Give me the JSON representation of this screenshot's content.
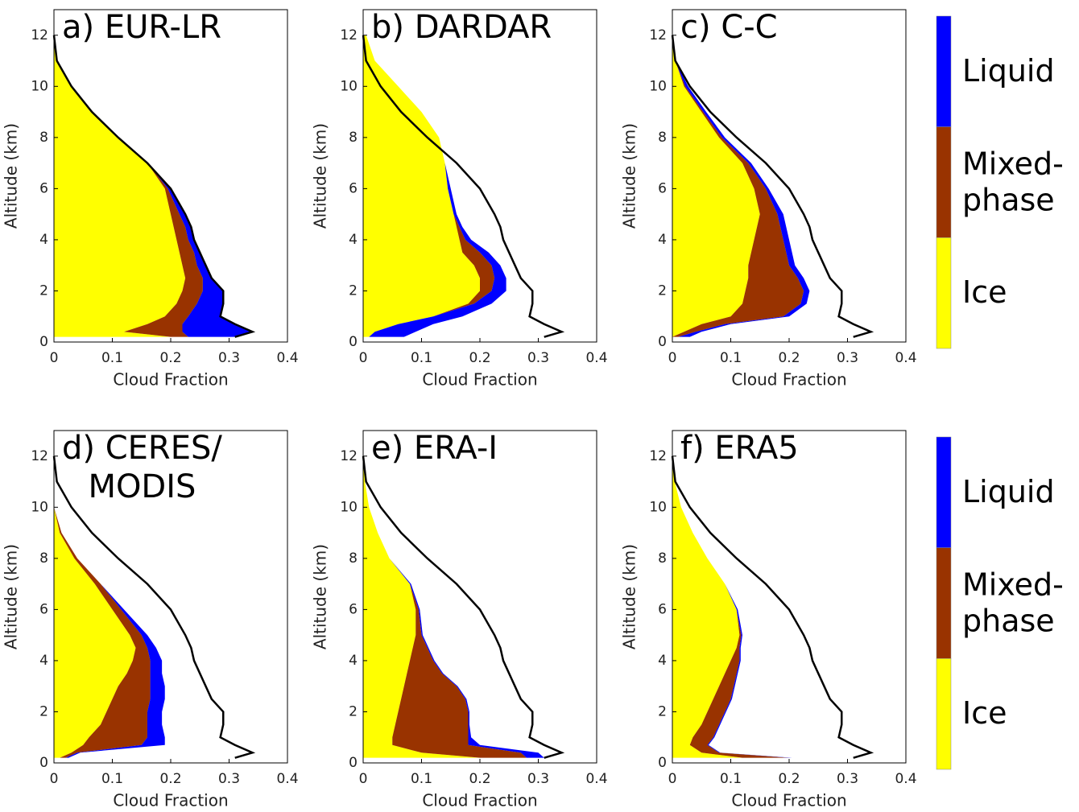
{
  "chart_data": [
    {
      "type": "area",
      "title": "a) EUR-LR",
      "xlabel": "Cloud Fraction",
      "ylabel": "Altitude (km)",
      "xlim": [
        0,
        0.4
      ],
      "ylim": [
        0,
        13
      ],
      "xticks": [
        0,
        0.1,
        0.2,
        0.3,
        0.4
      ],
      "yticks": [
        0,
        2,
        4,
        6,
        8,
        10,
        12
      ],
      "y": [
        0.2,
        0.4,
        0.7,
        1,
        1.5,
        2,
        2.5,
        3,
        3.5,
        4,
        4.5,
        5,
        6,
        7,
        8,
        9,
        10,
        11,
        12
      ],
      "series": [
        {
          "type": "area",
          "color": "#ffff00",
          "values": [
            0.2,
            0.12,
            0.16,
            0.19,
            0.21,
            0.22,
            0.225,
            0.22,
            0.215,
            0.21,
            0.205,
            0.2,
            0.19,
            0.16,
            0.11,
            0.065,
            0.03,
            0.005,
            0
          ]
        },
        {
          "type": "area",
          "color": "#993300",
          "values": [
            0.03,
            0.1,
            0.06,
            0.04,
            0.035,
            0.035,
            0.03,
            0.025,
            0.025,
            0.02,
            0.02,
            0.015,
            0.005,
            0,
            0,
            0,
            0,
            0,
            0
          ]
        },
        {
          "type": "area",
          "color": "#0000ff",
          "values": [
            0.08,
            0.12,
            0.09,
            0.055,
            0.045,
            0.035,
            0.015,
            0.015,
            0.01,
            0.01,
            0.01,
            0.01,
            0.005,
            0,
            0,
            0,
            0,
            0,
            0
          ]
        },
        {
          "type": "line",
          "color": "#000000",
          "values": [
            0.31,
            0.34,
            0.31,
            0.285,
            0.29,
            0.29,
            0.27,
            0.26,
            0.25,
            0.24,
            0.235,
            0.225,
            0.2,
            0.16,
            0.11,
            0.065,
            0.03,
            0.005,
            0
          ]
        }
      ]
    },
    {
      "type": "area",
      "title": "b) DARDAR",
      "xlabel": "Cloud Fraction",
      "ylabel": "Altitude (km)",
      "xlim": [
        0,
        0.4
      ],
      "ylim": [
        0,
        13
      ],
      "xticks": [
        0,
        0.1,
        0.2,
        0.3,
        0.4
      ],
      "yticks": [
        0,
        2,
        4,
        6,
        8,
        10,
        12
      ],
      "y": [
        0.2,
        0.4,
        0.7,
        1,
        1.5,
        2,
        2.5,
        3,
        3.5,
        4,
        4.5,
        5,
        6,
        7,
        8,
        9,
        10,
        11,
        12
      ],
      "series": [
        {
          "type": "area",
          "color": "#ffff00",
          "values": [
            0.01,
            0.02,
            0.06,
            0.12,
            0.18,
            0.2,
            0.2,
            0.19,
            0.17,
            0.165,
            0.16,
            0.155,
            0.145,
            0.14,
            0.13,
            0.1,
            0.06,
            0.02,
            0.005
          ]
        },
        {
          "type": "area",
          "color": "#993300",
          "values": [
            0,
            0,
            0,
            0,
            0.01,
            0.02,
            0.025,
            0.03,
            0.03,
            0.01,
            0.005,
            0,
            0,
            0,
            0,
            0,
            0,
            0,
            0
          ]
        },
        {
          "type": "area",
          "color": "#0000ff",
          "values": [
            0.06,
            0.07,
            0.06,
            0.05,
            0.03,
            0.025,
            0.02,
            0.015,
            0.015,
            0.01,
            0.005,
            0.005,
            0.005,
            0,
            0,
            0,
            0,
            0,
            0
          ]
        },
        {
          "type": "line",
          "color": "#000000",
          "values": [
            0.31,
            0.34,
            0.31,
            0.285,
            0.29,
            0.29,
            0.27,
            0.26,
            0.25,
            0.24,
            0.235,
            0.225,
            0.2,
            0.16,
            0.11,
            0.065,
            0.03,
            0.005,
            0
          ]
        }
      ]
    },
    {
      "type": "area",
      "title": "c) C-C",
      "xlabel": "Cloud Fraction",
      "ylabel": "Altitude (km)",
      "xlim": [
        0,
        0.4
      ],
      "ylim": [
        0,
        13
      ],
      "xticks": [
        0,
        0.1,
        0.2,
        0.3,
        0.4
      ],
      "yticks": [
        0,
        2,
        4,
        6,
        8,
        10,
        12
      ],
      "y": [
        0.2,
        0.4,
        0.7,
        1,
        1.5,
        2,
        2.5,
        3,
        3.5,
        4,
        4.5,
        5,
        6,
        7,
        8,
        9,
        10,
        11,
        12
      ],
      "series": [
        {
          "type": "area",
          "color": "#ffff00",
          "values": [
            0,
            0.02,
            0.05,
            0.1,
            0.12,
            0.125,
            0.13,
            0.13,
            0.135,
            0.14,
            0.145,
            0.15,
            0.14,
            0.12,
            0.08,
            0.05,
            0.02,
            0.005,
            0
          ]
        },
        {
          "type": "area",
          "color": "#993300",
          "values": [
            0.01,
            0.02,
            0.04,
            0.09,
            0.1,
            0.1,
            0.085,
            0.07,
            0.06,
            0.05,
            0.04,
            0.03,
            0.02,
            0.01,
            0.005,
            0.003,
            0.002,
            0,
            0
          ]
        },
        {
          "type": "area",
          "color": "#0000ff",
          "values": [
            0.02,
            0.01,
            0.01,
            0.01,
            0.01,
            0.01,
            0.01,
            0.01,
            0.01,
            0.01,
            0.01,
            0.01,
            0.005,
            0.005,
            0.005,
            0.005,
            0.005,
            0,
            0
          ]
        },
        {
          "type": "line",
          "color": "#000000",
          "values": [
            0.31,
            0.34,
            0.31,
            0.285,
            0.29,
            0.29,
            0.27,
            0.26,
            0.25,
            0.24,
            0.235,
            0.225,
            0.2,
            0.16,
            0.11,
            0.065,
            0.03,
            0.005,
            0
          ]
        }
      ],
      "legend": [
        {
          "name": "Liquid",
          "color": "#0000ff"
        },
        {
          "name": "Mixed-\nphase",
          "color": "#993300"
        },
        {
          "name": "Ice",
          "color": "#ffff00"
        }
      ]
    },
    {
      "type": "area",
      "title": "d) CERES/\nMODIS",
      "xlabel": "Cloud Fraction",
      "ylabel": "Altitude (km)",
      "xlim": [
        0,
        0.4
      ],
      "ylim": [
        0,
        13
      ],
      "xticks": [
        0,
        0.1,
        0.2,
        0.3,
        0.4
      ],
      "yticks": [
        0,
        2,
        4,
        6,
        8,
        10,
        12
      ],
      "y": [
        0.2,
        0.4,
        0.7,
        1,
        1.5,
        2,
        2.5,
        3,
        3.5,
        4,
        4.5,
        5,
        6,
        7,
        8,
        9,
        10,
        11,
        12
      ],
      "series": [
        {
          "type": "area",
          "color": "#ffff00",
          "values": [
            0.01,
            0.03,
            0.05,
            0.06,
            0.08,
            0.09,
            0.1,
            0.11,
            0.125,
            0.135,
            0.14,
            0.13,
            0.1,
            0.07,
            0.035,
            0.01,
            0,
            0,
            0
          ]
        },
        {
          "type": "area",
          "color": "#993300",
          "values": [
            0.01,
            0.01,
            0.1,
            0.1,
            0.08,
            0.07,
            0.065,
            0.055,
            0.04,
            0.03,
            0.02,
            0.02,
            0.015,
            0.01,
            0.005,
            0.003,
            0,
            0,
            0
          ]
        },
        {
          "type": "area",
          "color": "#0000ff",
          "values": [
            0.005,
            0.005,
            0.04,
            0.03,
            0.025,
            0.025,
            0.025,
            0.025,
            0.02,
            0.02,
            0.015,
            0.01,
            0.005,
            0,
            0,
            0,
            0,
            0,
            0
          ]
        },
        {
          "type": "line",
          "color": "#000000",
          "values": [
            0.31,
            0.34,
            0.31,
            0.285,
            0.29,
            0.29,
            0.27,
            0.26,
            0.25,
            0.24,
            0.235,
            0.225,
            0.2,
            0.16,
            0.11,
            0.065,
            0.03,
            0.005,
            0
          ]
        }
      ]
    },
    {
      "type": "area",
      "title": "e) ERA-I",
      "xlabel": "Cloud Fraction",
      "ylabel": "Altitude (km)",
      "xlim": [
        0,
        0.4
      ],
      "ylim": [
        0,
        13
      ],
      "xticks": [
        0,
        0.1,
        0.2,
        0.3,
        0.4
      ],
      "yticks": [
        0,
        2,
        4,
        6,
        8,
        10,
        12
      ],
      "y": [
        0.2,
        0.4,
        0.7,
        1,
        1.5,
        2,
        2.5,
        3,
        3.5,
        4,
        4.5,
        5,
        6,
        7,
        8,
        9,
        10,
        11,
        12
      ],
      "series": [
        {
          "type": "area",
          "color": "#ffff00",
          "values": [
            0.2,
            0.1,
            0.05,
            0.05,
            0.055,
            0.06,
            0.065,
            0.07,
            0.075,
            0.08,
            0.085,
            0.09,
            0.09,
            0.08,
            0.045,
            0.025,
            0.01,
            0.003,
            0
          ]
        },
        {
          "type": "area",
          "color": "#993300",
          "values": [
            0.08,
            0.17,
            0.13,
            0.13,
            0.125,
            0.12,
            0.11,
            0.09,
            0.06,
            0.04,
            0.025,
            0.01,
            0.005,
            0,
            0,
            0,
            0,
            0,
            0
          ]
        },
        {
          "type": "area",
          "color": "#0000ff",
          "values": [
            0.03,
            0.03,
            0.02,
            0.005,
            0.002,
            0.002,
            0.002,
            0.002,
            0.002,
            0.002,
            0.002,
            0.002,
            0.002,
            0.002,
            0,
            0,
            0,
            0,
            0
          ]
        },
        {
          "type": "line",
          "color": "#000000",
          "values": [
            0.31,
            0.34,
            0.31,
            0.285,
            0.29,
            0.29,
            0.27,
            0.26,
            0.25,
            0.24,
            0.235,
            0.225,
            0.2,
            0.16,
            0.11,
            0.065,
            0.03,
            0.005,
            0
          ]
        }
      ]
    },
    {
      "type": "area",
      "title": "f) ERA5",
      "xlabel": "Cloud Fraction",
      "ylabel": "Altitude (km)",
      "xlim": [
        0,
        0.4
      ],
      "ylim": [
        0,
        13
      ],
      "xticks": [
        0,
        0.1,
        0.2,
        0.3,
        0.4
      ],
      "yticks": [
        0,
        2,
        4,
        6,
        8,
        10,
        12
      ],
      "y": [
        0.2,
        0.4,
        0.7,
        1,
        1.5,
        2,
        2.5,
        3,
        3.5,
        4,
        4.5,
        5,
        6,
        7,
        8,
        9,
        10,
        11,
        12
      ],
      "series": [
        {
          "type": "area",
          "color": "#ffff00",
          "values": [
            0.12,
            0.05,
            0.03,
            0.035,
            0.05,
            0.06,
            0.07,
            0.08,
            0.09,
            0.1,
            0.11,
            0.115,
            0.11,
            0.09,
            0.06,
            0.035,
            0.015,
            0.004,
            0
          ]
        },
        {
          "type": "area",
          "color": "#993300",
          "values": [
            0.08,
            0.03,
            0.03,
            0.035,
            0.03,
            0.03,
            0.03,
            0.025,
            0.02,
            0.015,
            0.005,
            0.003,
            0,
            0,
            0,
            0,
            0,
            0,
            0
          ]
        },
        {
          "type": "area",
          "color": "#0000ff",
          "values": [
            0.005,
            0.002,
            0.002,
            0.002,
            0.002,
            0.002,
            0.002,
            0.002,
            0.002,
            0.002,
            0.002,
            0.002,
            0.002,
            0,
            0,
            0,
            0,
            0,
            0
          ]
        },
        {
          "type": "line",
          "color": "#000000",
          "values": [
            0.31,
            0.34,
            0.31,
            0.285,
            0.29,
            0.29,
            0.27,
            0.26,
            0.25,
            0.24,
            0.235,
            0.225,
            0.2,
            0.16,
            0.11,
            0.065,
            0.03,
            0.005,
            0
          ]
        }
      ],
      "legend": [
        {
          "name": "Liquid",
          "color": "#0000ff"
        },
        {
          "name": "Mixed-\nphase",
          "color": "#993300"
        },
        {
          "name": "Ice",
          "color": "#ffff00"
        }
      ]
    }
  ]
}
